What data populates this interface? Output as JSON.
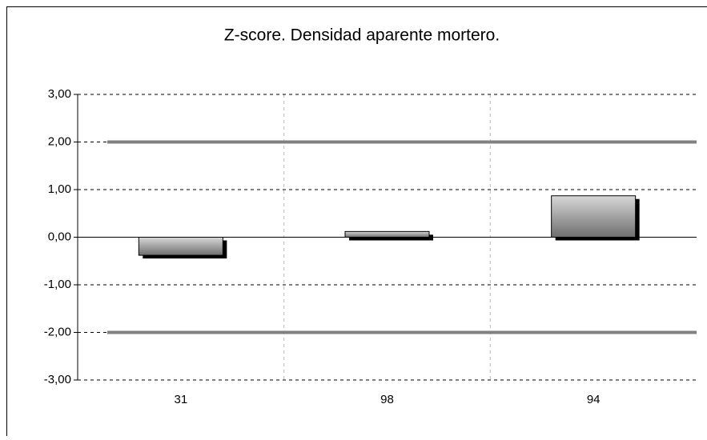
{
  "chart_data": {
    "type": "bar",
    "title": "Z-score. Densidad aparente mortero.",
    "categories": [
      "31",
      "98",
      "94"
    ],
    "values": [
      -0.38,
      0.12,
      0.87
    ],
    "color": "#a0a0a0",
    "ylim": [
      -3,
      3
    ],
    "yticks": [
      {
        "value": -3,
        "label": "-3,00"
      },
      {
        "value": -2,
        "label": "-2,00"
      },
      {
        "value": -1,
        "label": "-1,00"
      },
      {
        "value": 0,
        "label": "0,00"
      },
      {
        "value": 1,
        "label": "1,00"
      },
      {
        "value": 2,
        "label": "2,00"
      },
      {
        "value": 3,
        "label": "3,00"
      }
    ],
    "reference_lines": [
      2,
      -2
    ],
    "reference_color": "#808080",
    "grid": true
  }
}
